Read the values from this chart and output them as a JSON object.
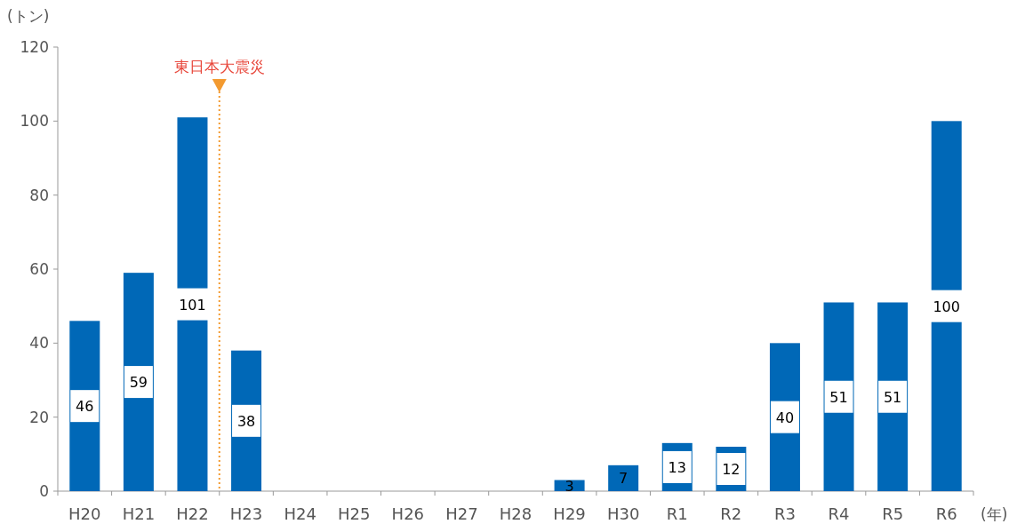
{
  "chart_data": {
    "type": "bar",
    "ylabel": "(トン)",
    "xlabel": "(年)",
    "categories": [
      "H20",
      "H21",
      "H22",
      "H23",
      "H24",
      "H25",
      "H26",
      "H27",
      "H28",
      "H29",
      "H30",
      "R1",
      "R2",
      "R3",
      "R4",
      "R5",
      "R6"
    ],
    "values": [
      46,
      59,
      101,
      38,
      null,
      null,
      null,
      null,
      null,
      3,
      7,
      13,
      12,
      40,
      51,
      51,
      100
    ],
    "color": "#0068b7",
    "ylim": [
      0,
      120
    ],
    "yticks": [
      0,
      20,
      40,
      60,
      80,
      100,
      120
    ],
    "data_labels": true,
    "ref_lines": [
      {
        "axis": "x",
        "value": "H23",
        "label": "東日本大震災",
        "color": "#f39a30",
        "line_style": "dotted"
      }
    ]
  }
}
